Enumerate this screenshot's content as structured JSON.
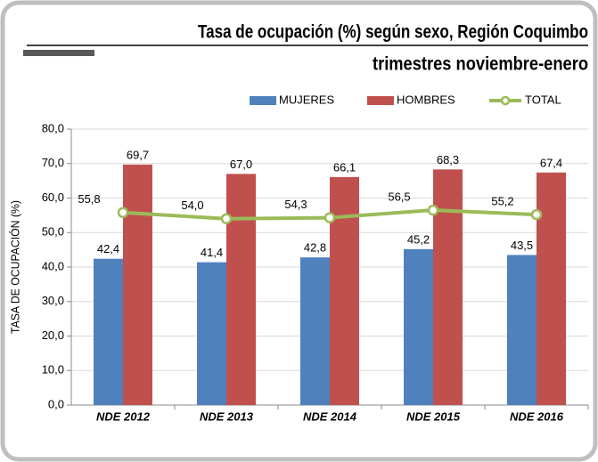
{
  "chart_data": {
    "type": "bar",
    "title": "Tasa de ocupación (%) según sexo, Región Coquimbo",
    "subtitle": "trimestres noviembre-enero",
    "y_label": "TASA DE OCUPACIÓN (%)",
    "categories": [
      "NDE 2012",
      "NDE 2013",
      "NDE 2014",
      "NDE 2015",
      "NDE 2016"
    ],
    "series": [
      {
        "name": "MUJERES",
        "type": "bar",
        "color": "#4f81bd",
        "values": [
          42.4,
          41.4,
          42.8,
          45.2,
          43.5
        ],
        "value_labels": [
          "42,4",
          "41,4",
          "42,8",
          "45,2",
          "43,5"
        ]
      },
      {
        "name": "HOMBRES",
        "type": "bar",
        "color": "#c0504d",
        "values": [
          69.7,
          67.0,
          66.1,
          68.3,
          67.4
        ],
        "value_labels": [
          "69,7",
          "67,0",
          "66,1",
          "68,3",
          "67,4"
        ]
      },
      {
        "name": "TOTAL",
        "type": "line",
        "color": "#9bbb59",
        "values": [
          55.8,
          54.0,
          54.3,
          56.5,
          55.2
        ],
        "value_labels": [
          "55,8",
          "54,0",
          "54,3",
          "56,5",
          "55,2"
        ]
      }
    ],
    "ylim": [
      0,
      80
    ],
    "yticks": [
      {
        "value": 0,
        "label": "0,0"
      },
      {
        "value": 10,
        "label": "10,0"
      },
      {
        "value": 20,
        "label": "20,0"
      },
      {
        "value": 30,
        "label": "30,0"
      },
      {
        "value": 40,
        "label": "40,0"
      },
      {
        "value": 50,
        "label": "50,0"
      },
      {
        "value": 60,
        "label": "60,0"
      },
      {
        "value": 70,
        "label": "70,0"
      },
      {
        "value": 80,
        "label": "80,0"
      }
    ],
    "grid": true,
    "legend": "top"
  }
}
